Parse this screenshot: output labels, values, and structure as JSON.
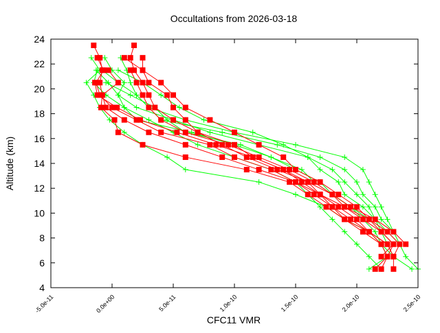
{
  "chart_data": {
    "type": "line",
    "title": "Occultations from 2026-03-18",
    "xlabel": "CFC11 VMR",
    "ylabel": "Altitude (km)",
    "xlim": [
      -5e-11,
      2.5e-10
    ],
    "ylim": [
      4,
      24
    ],
    "xticks": [
      -5e-11,
      0,
      5e-11,
      1e-10,
      1.5e-10,
      2e-10,
      2.5e-10
    ],
    "xtick_labels": [
      "-5.0e-11",
      "0.0e+00",
      "5.0e-11",
      "1.0e-10",
      "1.5e-10",
      "2.0e-10",
      "2.5e-10"
    ],
    "yticks": [
      4,
      6,
      8,
      10,
      12,
      14,
      16,
      18,
      20,
      22,
      24
    ],
    "ytick_labels": [
      "4",
      "6",
      "8",
      "10",
      "12",
      "14",
      "16",
      "18",
      "20",
      "22",
      "24"
    ],
    "grid": false,
    "altitudes": [
      23.5,
      22.5,
      21.5,
      20.5,
      19.5,
      18.5,
      17.5,
      16.5,
      15.5,
      14.5,
      13.5,
      12.5,
      11.5,
      10.5,
      9.5,
      8.5,
      7.5,
      6.5,
      5.5
    ],
    "colors": {
      "red_series": "#ff0000",
      "green_series": "#00ff00"
    },
    "markers": {
      "red_series": "square",
      "green_series": "plus"
    },
    "green_profiles": [
      [
        null,
        -1.7e-11,
        -1e-11,
        -2.1e-11,
        -1.5e-11,
        -1e-11,
        -2e-12,
        1e-11,
        2.5e-11,
        4.5e-11,
        6e-11,
        1.2e-10,
        1.5e-10,
        1.75e-10,
        1.9e-10,
        2.1e-10,
        2.2e-10,
        2.3e-10,
        2.45e-10
      ],
      [
        null,
        7e-12,
        1.2e-11,
        1.5e-11,
        2e-11,
        3e-11,
        4e-11,
        9e-11,
        1.35e-10,
        1.7e-10,
        1.9e-10,
        2e-10,
        2.05e-10,
        2.15e-10,
        2.2e-10,
        2.3e-10,
        2.35e-10,
        2.4e-10,
        2.5e-10
      ],
      [
        null,
        -6e-12,
        0,
        1e-11,
        5e-12,
        1e-11,
        2e-11,
        6.5e-11,
        1e-10,
        1.3e-10,
        1.5e-10,
        1.7e-10,
        1.8e-10,
        1.95e-10,
        2.05e-10,
        2.15e-10,
        2.2e-10,
        2.25e-10,
        2.1e-10
      ],
      [
        null,
        null,
        -1.3e-11,
        -3e-12,
        5e-12,
        2e-11,
        5e-11,
        8e-11,
        1.2e-10,
        1.6e-10,
        1.8e-10,
        1.9e-10,
        2e-10,
        2.1e-10,
        2.15e-10,
        2.2e-10,
        2.25e-10,
        2.3e-10,
        null
      ],
      [
        null,
        null,
        -8e-12,
        5e-12,
        2e-11,
        3e-11,
        6e-11,
        1e-10,
        1.5e-10,
        1.9e-10,
        2.05e-10,
        2.1e-10,
        2.15e-10,
        2.2e-10,
        2.25e-10,
        2.3e-10,
        null,
        null,
        null
      ],
      [
        null,
        null,
        -1.2e-11,
        -1.5e-11,
        -5e-12,
        1e-11,
        3e-11,
        5e-11,
        7e-11,
        1e-10,
        1.3e-10,
        1.5e-10,
        1.6e-10,
        1.7e-10,
        1.8e-10,
        1.9e-10,
        2e-10,
        2.1e-10,
        2.2e-10
      ],
      [
        null,
        null,
        5e-12,
        2.5e-11,
        4e-11,
        5.5e-11,
        7.5e-11,
        1.15e-10,
        1.4e-10,
        1.6e-10,
        1.7e-10,
        1.85e-10,
        1.9e-10,
        2.05e-10,
        2.15e-10,
        2.25e-10,
        2.35e-10,
        null,
        null
      ],
      [
        null,
        null,
        null,
        -5e-12,
        1.5e-11,
        3.5e-11,
        4.5e-11,
        6e-11,
        1.05e-10,
        1.3e-10,
        1.55e-10,
        1.65e-10,
        1.8e-10,
        1.95e-10,
        2.1e-10,
        2.2e-10,
        2.3e-10,
        null,
        null
      ]
    ],
    "red_profiles": [
      [
        -1.5e-11,
        -1e-11,
        -8e-12,
        -1e-11,
        -8e-12,
        -5e-12,
        1e-11,
        3e-11,
        6e-11,
        9e-11,
        1.2e-10,
        1.5e-10,
        1.7e-10,
        1.9e-10,
        2.05e-10,
        2.2e-10,
        2.3e-10,
        2.25e-10,
        2.2e-10
      ],
      [
        1.8e-11,
        1.5e-11,
        1.8e-11,
        2.5e-11,
        3e-11,
        3.5e-11,
        5e-11,
        7e-11,
        9e-11,
        1.1e-10,
        1.35e-10,
        1.6e-10,
        1.8e-10,
        1.9e-10,
        2.1e-10,
        2.25e-10,
        2.35e-10,
        2.3e-10,
        2.3e-10
      ],
      [
        null,
        -1.2e-11,
        -7e-12,
        -1.3e-11,
        -1e-11,
        0,
        2e-11,
        4e-11,
        8e-11,
        1e-10,
        1.3e-10,
        1.5e-10,
        1.65e-10,
        1.8e-10,
        1.95e-10,
        2.1e-10,
        2.2e-10,
        2.25e-10,
        2.15e-10
      ],
      [
        null,
        1e-11,
        2.5e-11,
        4e-11,
        5e-11,
        6e-11,
        8e-11,
        1e-10,
        1.2e-10,
        1.4e-10,
        1.5e-10,
        1.7e-10,
        1.85e-10,
        2e-10,
        2.1e-10,
        2.2e-10,
        2.3e-10,
        2.2e-10,
        null
      ],
      [
        null,
        2.5e-11,
        2.5e-11,
        3e-11,
        4.5e-11,
        5e-11,
        6e-11,
        7e-11,
        1e-10,
        1.15e-10,
        1.4e-10,
        1.6e-10,
        1.7e-10,
        1.85e-10,
        2e-10,
        2.1e-10,
        2.25e-10,
        null,
        null
      ],
      [
        null,
        null,
        1.5e-11,
        2e-11,
        2.5e-11,
        3e-11,
        4e-11,
        6e-11,
        9.5e-11,
        1.2e-10,
        1.45e-10,
        1.65e-10,
        1.8e-10,
        1.95e-10,
        2.15e-10,
        2.3e-10,
        2.4e-10,
        null,
        null
      ],
      [
        null,
        null,
        -3e-12,
        5e-12,
        -8e-12,
        -9e-12,
        2e-12,
        5e-12,
        2.5e-11,
        6e-11,
        1.1e-10,
        1.45e-10,
        1.6e-10,
        1.75e-10,
        1.9e-10,
        2.05e-10,
        2.2e-10,
        null,
        null
      ],
      [
        null,
        null,
        null,
        -1.4e-11,
        -1.2e-11,
        4e-12,
        2.3e-11,
        5.3e-11,
        8.5e-11,
        1.15e-10,
        1.4e-10,
        1.55e-10,
        1.7e-10,
        1.8e-10,
        1.9e-10,
        2.1e-10,
        2.25e-10,
        2.3e-10,
        null
      ]
    ]
  }
}
